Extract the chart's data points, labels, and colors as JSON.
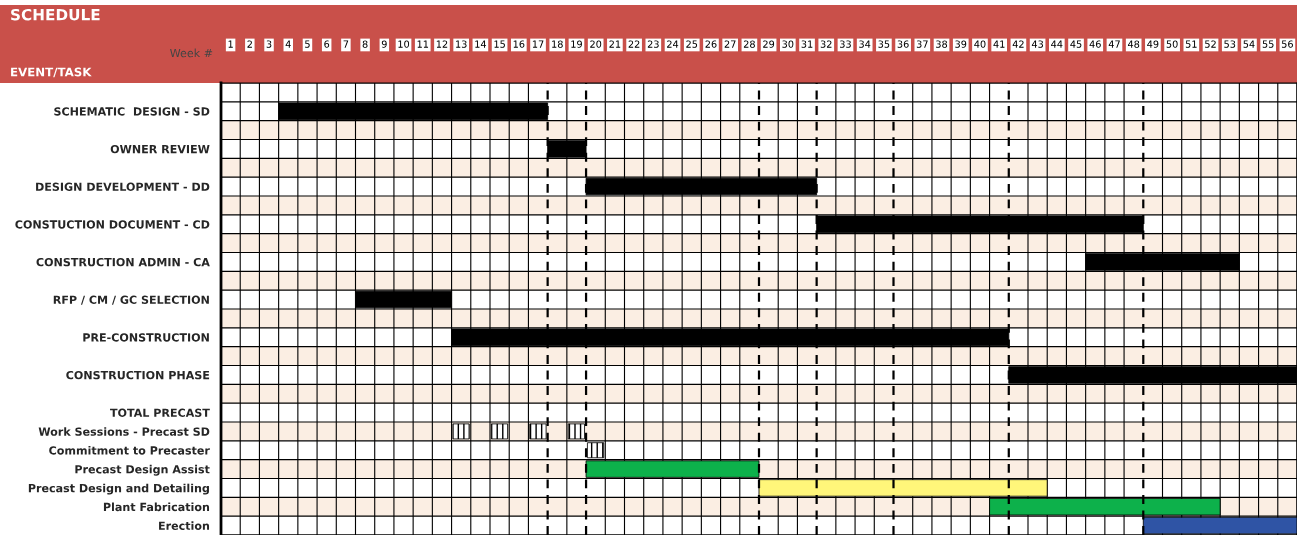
{
  "chart_data": {
    "type": "bar",
    "orientation": "horizontal",
    "title": "SCHEDULE",
    "xlabel": "Week #",
    "ylabel": "EVENT/TASK",
    "categories": [
      null,
      "SCHEMATIC  DESIGN - SD",
      null,
      "OWNER REVIEW",
      null,
      "DESIGN DEVELOPMENT - DD",
      null,
      "CONSTUCTION DOCUMENT - CD",
      null,
      "CONSTRUCTION ADMIN - CA",
      null,
      "RFP / CM / GC SELECTION",
      null,
      "PRE-CONSTRUCTION",
      null,
      "CONSTRUCTION PHASE",
      null,
      "TOTAL PRECAST",
      "Work Sessions - Precast SD",
      "Commitment to Precaster",
      "Precast Design Assist",
      "Precast Design and Detailing",
      "Plant Fabrication",
      "Erection"
    ],
    "series": [
      {
        "base": [
          null,
          3.5,
          null,
          17.5,
          null,
          19.5,
          null,
          31.5,
          null,
          45.5,
          null,
          7.5,
          null,
          12.5,
          null,
          41.5,
          null,
          null,
          null,
          null,
          19.5,
          28.5,
          40.5,
          48.5
        ],
        "values": [
          null,
          14,
          null,
          2,
          null,
          12,
          null,
          17,
          null,
          8,
          null,
          5,
          null,
          29,
          null,
          15,
          null,
          null,
          null,
          null,
          9,
          15,
          12,
          8
        ],
        "colors": [
          null,
          "#000000",
          null,
          "#000000",
          null,
          "#000000",
          null,
          "#000000",
          null,
          "#000000",
          null,
          "#000000",
          null,
          "#000000",
          null,
          "#000000",
          null,
          null,
          null,
          null,
          "#0db14b",
          "#fff67a",
          "#0db14b",
          "#2f54a5"
        ]
      },
      {
        "color": "#000000",
        "base": [
          null,
          null,
          null,
          null,
          null,
          null,
          null,
          null,
          null,
          null,
          null,
          null,
          null,
          null,
          null,
          null,
          null,
          null,
          12.5,
          19.5,
          null,
          null,
          null,
          null
        ],
        "values": [
          null,
          null,
          null,
          null,
          null,
          null,
          null,
          null,
          null,
          null,
          null,
          null,
          null,
          null,
          null,
          null,
          null,
          null,
          1,
          1,
          null,
          null,
          null,
          null
        ]
      },
      {
        "color": "#000000",
        "base": [
          null,
          null,
          null,
          null,
          null,
          null,
          null,
          null,
          null,
          null,
          null,
          null,
          null,
          null,
          null,
          null,
          null,
          null,
          14.5,
          null,
          null,
          null,
          null,
          null
        ],
        "values": [
          null,
          null,
          null,
          null,
          null,
          null,
          null,
          null,
          null,
          null,
          null,
          null,
          null,
          null,
          null,
          null,
          null,
          null,
          1,
          null,
          null,
          null,
          null,
          null
        ]
      },
      {
        "color": "#000000",
        "base": [
          null,
          null,
          null,
          null,
          null,
          null,
          null,
          null,
          null,
          null,
          null,
          null,
          null,
          null,
          null,
          null,
          null,
          null,
          16.5,
          null,
          null,
          null,
          null,
          null
        ],
        "values": [
          null,
          null,
          null,
          null,
          null,
          null,
          null,
          null,
          null,
          null,
          null,
          null,
          null,
          null,
          null,
          null,
          null,
          null,
          1,
          null,
          null,
          null,
          null,
          null
        ]
      },
      {
        "color": "#000000",
        "base": [
          null,
          null,
          null,
          null,
          null,
          null,
          null,
          null,
          null,
          null,
          null,
          null,
          null,
          null,
          null,
          null,
          null,
          null,
          18.5,
          null,
          null,
          null,
          null,
          null
        ],
        "values": [
          null,
          null,
          null,
          null,
          null,
          null,
          null,
          null,
          null,
          null,
          null,
          null,
          null,
          null,
          null,
          null,
          null,
          null,
          1,
          null,
          null,
          null,
          null,
          null
        ]
      }
    ],
    "xlim": [
      0.5,
      56.5
    ],
    "xticks": [
      1,
      2,
      3,
      4,
      5,
      6,
      7,
      8,
      9,
      10,
      11,
      12,
      13,
      14,
      15,
      16,
      17,
      18,
      19,
      20,
      21,
      22,
      23,
      24,
      25,
      26,
      27,
      28,
      29,
      30,
      31,
      32,
      33,
      34,
      35,
      36,
      37,
      38,
      39,
      40,
      41,
      42,
      43,
      44,
      45,
      46,
      47,
      48,
      49,
      50,
      51,
      52,
      53,
      54,
      55,
      56
    ],
    "ref_lines": [
      {
        "axis": "x",
        "value": 17.5,
        "line_style": "dashed",
        "color": "#000000"
      },
      {
        "axis": "x",
        "value": 19.5,
        "line_style": "dashed",
        "color": "#000000"
      },
      {
        "axis": "x",
        "value": 28.5,
        "line_style": "dashed",
        "color": "#000000"
      },
      {
        "axis": "x",
        "value": 31.5,
        "line_style": "dashed",
        "color": "#000000"
      },
      {
        "axis": "x",
        "value": 35.5,
        "line_style": "dashed",
        "color": "#000000"
      },
      {
        "axis": "x",
        "value": 41.5,
        "line_style": "dashed",
        "color": "#000000"
      },
      {
        "axis": "x",
        "value": 48.5,
        "line_style": "dashed",
        "color": "#000000"
      }
    ],
    "grid": true,
    "legend": false
  }
}
